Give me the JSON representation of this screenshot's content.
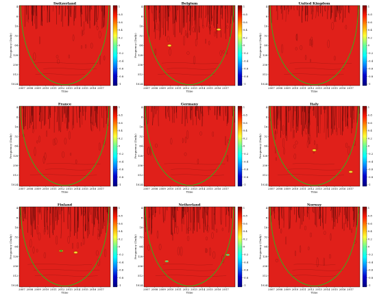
{
  "chart_data": [
    {
      "type": "heatmap",
      "title": "Switzerland",
      "xlabel": "Time",
      "ylabel": "Frequency (Daily)",
      "x_ticks": [
        "2007",
        "2008",
        "2009",
        "2010",
        "2011",
        "2012",
        "2013",
        "2014",
        "2015",
        "2016",
        "2017"
      ],
      "y_ticks": [
        "4",
        "8",
        "16",
        "32",
        "64",
        "128",
        "256",
        "512",
        "1024"
      ],
      "colorbar_ticks": [
        "1",
        "0.8",
        "0.6",
        "0.4",
        "0.2",
        "0",
        "-0.2",
        "-0.4",
        "-0.6",
        "-0.8",
        "-1"
      ],
      "coi_color": "#21c21c",
      "noise_level": 0.6,
      "hotspots": []
    },
    {
      "type": "heatmap",
      "title": "Belgium",
      "xlabel": "Time",
      "ylabel": "Frequency (Daily)",
      "x_ticks": [
        "2007",
        "2008",
        "2009",
        "2010",
        "2011",
        "2012",
        "2013",
        "2014",
        "2015",
        "2016",
        "2017"
      ],
      "y_ticks": [
        "4",
        "8",
        "16",
        "32",
        "64",
        "128",
        "256",
        "512",
        "1024"
      ],
      "colorbar_ticks": [
        "1",
        "0.8",
        "0.6",
        "0.4",
        "0.2",
        "0",
        "-0.2",
        "-0.4",
        "-0.6",
        "-0.8",
        "-1"
      ],
      "coi_color": "#21c21c",
      "noise_level": 1.0,
      "hotspots": [
        {
          "t": 0.28,
          "f": 0.5,
          "color": "#e6e04a"
        },
        {
          "t": 0.82,
          "f": 0.3,
          "color": "#e6e04a"
        }
      ]
    },
    {
      "type": "heatmap",
      "title": "United Kingdom",
      "xlabel": "Time",
      "ylabel": "Frequency (Daily)",
      "x_ticks": [
        "2007",
        "2008",
        "2009",
        "2010",
        "2011",
        "2012",
        "2013",
        "2014",
        "2015",
        "2016",
        "2017"
      ],
      "y_ticks": [
        "4",
        "8",
        "16",
        "32",
        "64",
        "128",
        "256",
        "512",
        "1024"
      ],
      "colorbar_ticks": [
        "1",
        "0.8",
        "0.6",
        "0.4",
        "0.2",
        "0",
        "-0.2",
        "-0.4",
        "-0.6",
        "-0.8",
        "-1"
      ],
      "coi_color": "#21c21c",
      "noise_level": 0.4,
      "hotspots": []
    },
    {
      "type": "heatmap",
      "title": "France",
      "xlabel": "Time",
      "ylabel": "Frequency (Daily)",
      "x_ticks": [
        "2007",
        "2008",
        "2009",
        "2010",
        "2011",
        "2012",
        "2013",
        "2014",
        "2015",
        "2016",
        "2017"
      ],
      "y_ticks": [
        "4",
        "8",
        "16",
        "32",
        "64",
        "128",
        "256",
        "512",
        "1024"
      ],
      "colorbar_ticks": [
        "1",
        "0.8",
        "0.6",
        "0.4",
        "0.2",
        "0",
        "-0.2",
        "-0.4",
        "-0.6",
        "-0.8",
        "-1"
      ],
      "coi_color": "#21c21c",
      "noise_level": 0.7,
      "hotspots": []
    },
    {
      "type": "heatmap",
      "title": "Germany",
      "xlabel": "Time",
      "ylabel": "Frequency (Daily)",
      "x_ticks": [
        "2007",
        "2008",
        "2009",
        "2010",
        "2011",
        "2012",
        "2013",
        "2014",
        "2015",
        "2016",
        "2017"
      ],
      "y_ticks": [
        "4",
        "8",
        "16",
        "32",
        "64",
        "128",
        "256",
        "512",
        "1024"
      ],
      "colorbar_ticks": [
        "1",
        "0.8",
        "0.6",
        "0.4",
        "0.2",
        "0",
        "-0.2",
        "-0.4",
        "-0.6",
        "-0.8",
        "-1"
      ],
      "coi_color": "#21c21c",
      "noise_level": 0.5,
      "hotspots": []
    },
    {
      "type": "heatmap",
      "title": "Italy",
      "xlabel": "Time",
      "ylabel": "Frequency (Daily)",
      "x_ticks": [
        "2007",
        "2008",
        "2009",
        "2010",
        "2011",
        "2012",
        "2013",
        "2014",
        "2015",
        "2016",
        "2017"
      ],
      "y_ticks": [
        "4",
        "8",
        "16",
        "32",
        "64",
        "128",
        "256",
        "512",
        "1024"
      ],
      "colorbar_ticks": [
        "1",
        "0.8",
        "0.6",
        "0.4",
        "0.2",
        "0",
        "-0.2",
        "-0.4",
        "-0.6",
        "-0.8",
        "-1"
      ],
      "coi_color": "#21c21c",
      "noise_level": 1.0,
      "hotspots": [
        {
          "t": 0.5,
          "f": 0.55,
          "color": "#e6e04a"
        },
        {
          "t": 0.9,
          "f": 0.82,
          "color": "#e6e04a"
        }
      ]
    },
    {
      "type": "heatmap",
      "title": "Finland",
      "xlabel": "Time",
      "ylabel": "Frequency (Daily)",
      "x_ticks": [
        "2007",
        "2008",
        "2009",
        "2010",
        "2011",
        "2012",
        "2013",
        "2014",
        "2015",
        "2016",
        "2017"
      ],
      "y_ticks": [
        "4",
        "8",
        "16",
        "32",
        "64",
        "128",
        "256",
        "512",
        "1024"
      ],
      "colorbar_ticks": [
        "1",
        "0.8",
        "0.6",
        "0.4",
        "0.2",
        "0",
        "-0.2",
        "-0.4",
        "-0.6",
        "-0.8",
        "-1"
      ],
      "coi_color": "#21c21c",
      "noise_level": 0.9,
      "hotspots": [
        {
          "t": 0.46,
          "f": 0.55,
          "color": "#2aa02a"
        },
        {
          "t": 0.62,
          "f": 0.57,
          "color": "#e6e04a"
        }
      ]
    },
    {
      "type": "heatmap",
      "title": "Netherland",
      "xlabel": "Time",
      "ylabel": "Frequency (Daily)",
      "x_ticks": [
        "2007",
        "2008",
        "2009",
        "2010",
        "2011",
        "2012",
        "2013",
        "2014",
        "2015",
        "2016",
        "2017"
      ],
      "y_ticks": [
        "4",
        "8",
        "16",
        "32",
        "64",
        "128",
        "256",
        "512",
        "1024"
      ],
      "colorbar_ticks": [
        "1",
        "0.8",
        "0.6",
        "0.4",
        "0.2",
        "0",
        "-0.2",
        "-0.4",
        "-0.6",
        "-0.8",
        "-1"
      ],
      "coi_color": "#21c21c",
      "noise_level": 0.8,
      "hotspots": [
        {
          "t": 0.25,
          "f": 0.68,
          "color": "#3fc6a0"
        },
        {
          "t": 0.92,
          "f": 0.6,
          "color": "#3fc6a0"
        }
      ]
    },
    {
      "type": "heatmap",
      "title": "Norway",
      "xlabel": "Time",
      "ylabel": "Frequency (Daily)",
      "x_ticks": [
        "2007",
        "2008",
        "2009",
        "2010",
        "2011",
        "2012",
        "2013",
        "2014",
        "2015",
        "2016",
        "2017"
      ],
      "y_ticks": [
        "4",
        "8",
        "16",
        "32",
        "64",
        "128",
        "256",
        "512",
        "1024"
      ],
      "colorbar_ticks": [
        "1",
        "0.8",
        "0.6",
        "0.4",
        "0.2",
        "0",
        "-0.2",
        "-0.4",
        "-0.6",
        "-0.8",
        "-1"
      ],
      "coi_color": "#21c21c",
      "noise_level": 0.6,
      "hotspots": []
    }
  ],
  "colors": {
    "background_field": "#e0201a",
    "contour": "#5a0a08",
    "colorbar_gradient": [
      "#7a0000",
      "#ff1a00",
      "#ff9a00",
      "#ffff33",
      "#66ff99",
      "#00ffff",
      "#0080ff",
      "#0000cc",
      "#000080"
    ]
  }
}
